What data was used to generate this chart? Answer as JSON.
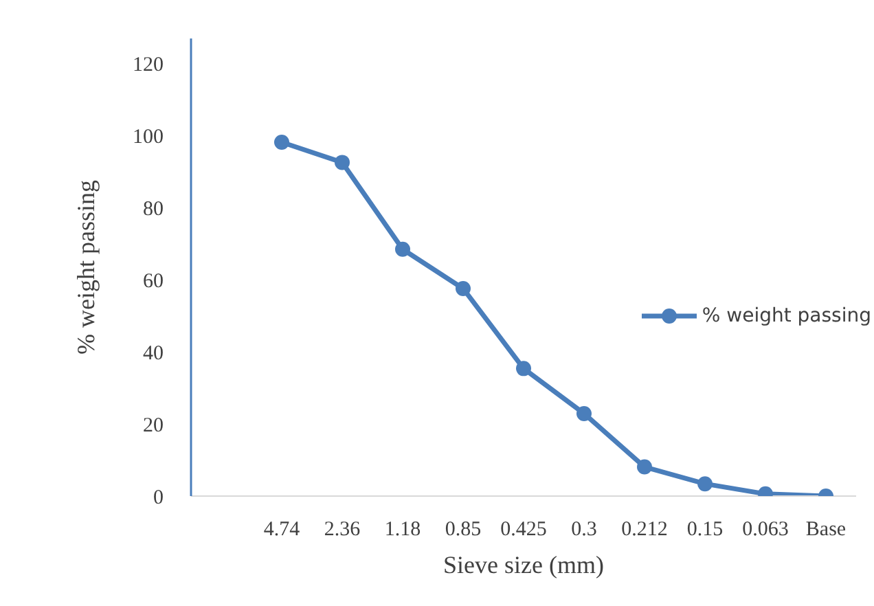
{
  "chart_data": {
    "type": "line",
    "xlabel": "Sieve size (mm)",
    "ylabel": "% weight passing",
    "categories": [
      null,
      "4.74",
      "2.36",
      "1.18",
      "0.85",
      "0.425",
      "0.3",
      "0.212",
      "0.15",
      "0.063",
      "Base"
    ],
    "series": [
      {
        "name": "% weight passing",
        "color": "#4a7ebb",
        "values": [
          null,
          98.2,
          92.6,
          68.5,
          57.6,
          35.4,
          22.9,
          8.1,
          3.4,
          0.6,
          0
        ]
      }
    ],
    "ylim": [
      0,
      127
    ],
    "yticks": [
      0,
      20,
      40,
      60,
      80,
      100,
      120
    ],
    "grid": false,
    "legend": "right",
    "marker": "circle",
    "line_style": "solid"
  }
}
